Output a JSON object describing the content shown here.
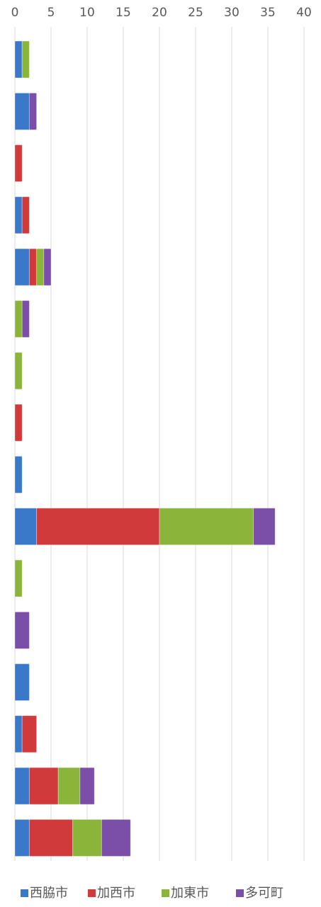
{
  "chart_data": {
    "type": "stacked-bar-horizontal",
    "categories": [
      null,
      null,
      null,
      null,
      null,
      null,
      null,
      null,
      null,
      null,
      null,
      null,
      null,
      null,
      null,
      null
    ],
    "series": [
      {
        "name": "西脇市",
        "color": "#3a78c9",
        "values": [
          1,
          2,
          0,
          1,
          2,
          0,
          0,
          0,
          1,
          3,
          0,
          0,
          2,
          1,
          2,
          2
        ]
      },
      {
        "name": "加西市",
        "color": "#d03a3a",
        "values": [
          0,
          0,
          1,
          1,
          1,
          0,
          0,
          1,
          0,
          17,
          0,
          0,
          0,
          2,
          4,
          6
        ]
      },
      {
        "name": "加東市",
        "color": "#8ab53a",
        "values": [
          1,
          0,
          0,
          0,
          1,
          1,
          1,
          0,
          0,
          13,
          1,
          0,
          0,
          0,
          3,
          4
        ]
      },
      {
        "name": "多可町",
        "color": "#7b4ea8",
        "values": [
          0,
          1,
          0,
          0,
          1,
          1,
          0,
          0,
          0,
          3,
          0,
          2,
          0,
          0,
          2,
          4
        ]
      }
    ],
    "xlim": [
      0,
      40
    ],
    "xticks": [
      0,
      5,
      10,
      15,
      20,
      25,
      30,
      35,
      40
    ],
    "grid": true,
    "legend": "bottom"
  }
}
